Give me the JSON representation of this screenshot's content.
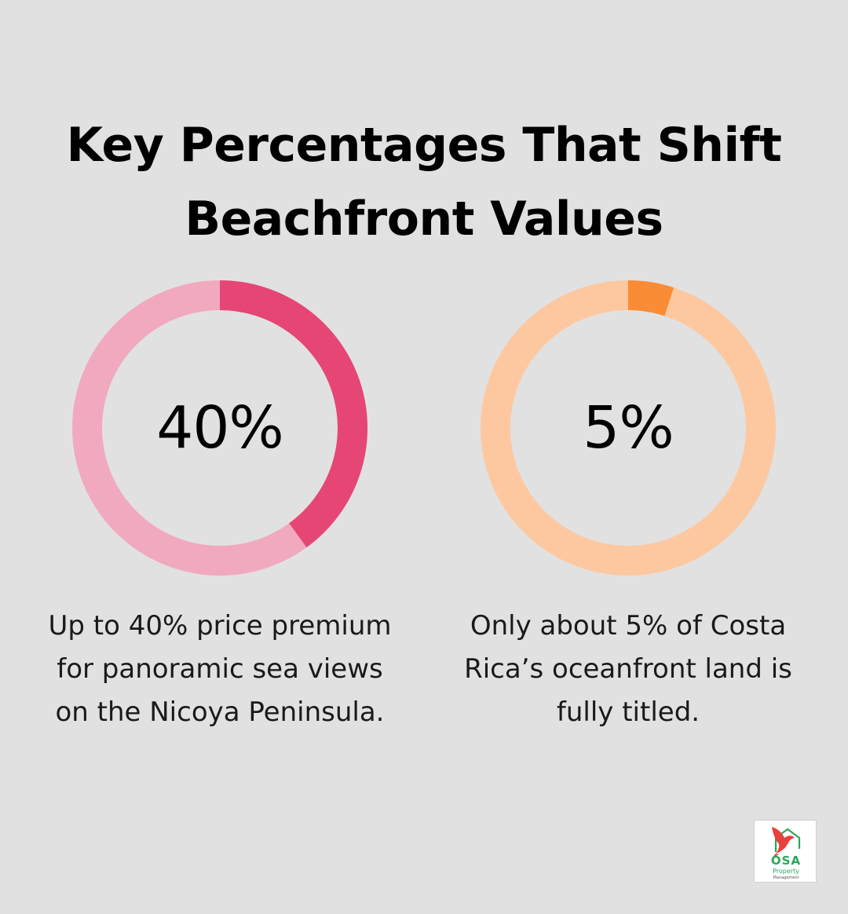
{
  "title": {
    "line1": "Key Percentages That Shift",
    "line2": "Beachfront Values"
  },
  "chart_data": [
    {
      "type": "donut",
      "value": 40,
      "max": 100,
      "label": "40%",
      "caption": "Up to 40% price premium for panoramic sea views on the Nicoya Peninsula.",
      "caption_lines": [
        "Up to 40% price premium",
        "for panoramic sea views",
        "on the Nicoya Peninsula."
      ],
      "colors": {
        "fill": "#e54676",
        "track": "#f1a9bf"
      }
    },
    {
      "type": "donut",
      "value": 5,
      "max": 100,
      "label": "5%",
      "caption": "Only about 5% of Costa Rica’s oceanfront land is fully titled.",
      "caption_lines": [
        "Only about 5% of Costa",
        "Rica’s oceanfront land is",
        "fully titled."
      ],
      "colors": {
        "fill": "#fa8c35",
        "track": "#fdc8a0"
      }
    }
  ],
  "logo": {
    "name": "OSA",
    "line2": "Property",
    "line3": "Management",
    "icon": "bird-house-icon",
    "colors": {
      "bird": "#e8403d",
      "house": "#2aa75a"
    }
  }
}
